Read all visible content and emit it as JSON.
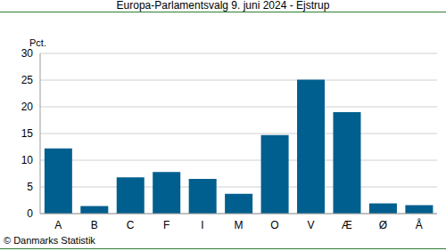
{
  "chart_data": {
    "type": "bar",
    "title": "Europa-Parlamentsvalg 9. juni 2024 - Ejstrup",
    "y_label": "Pct.",
    "annotation": "© Danmarks Statistik",
    "categories": [
      "A",
      "B",
      "C",
      "F",
      "I",
      "M",
      "O",
      "V",
      "Æ",
      "Ø",
      "Å"
    ],
    "values": [
      12.2,
      1.4,
      6.8,
      7.8,
      6.5,
      3.7,
      14.7,
      25.1,
      19.0,
      1.9,
      1.6
    ],
    "color": "#005f8e",
    "ylim": [
      0,
      30
    ],
    "yticks": [
      0,
      5,
      10,
      15,
      20,
      25,
      30
    ],
    "grid": true
  }
}
